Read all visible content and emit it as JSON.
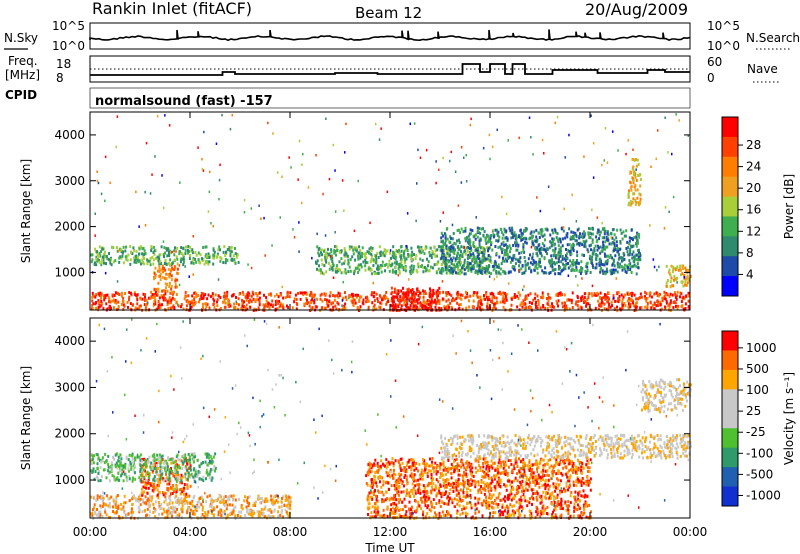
{
  "header": {
    "station": "Rankin Inlet (fitACF)",
    "beam": "Beam 12",
    "date": "20/Aug/2009"
  },
  "noise_panel": {
    "left_label": "N.Sky",
    "right_label": "N.Search",
    "left_ticks": [
      "10^5",
      "10^0"
    ],
    "right_ticks": [
      "10^5",
      "10^0"
    ]
  },
  "freq_panel": {
    "left_label_1": "Freq.",
    "left_label_2": "[MHz]",
    "right_label": "Nave",
    "left_ticks": [
      "18",
      "8"
    ],
    "right_ticks": [
      "60",
      "0"
    ]
  },
  "cpid": {
    "label": "CPID",
    "value": "normalsound (fast) -157"
  },
  "colors": {
    "power": [
      "#0000ff",
      "#1f4ba8",
      "#2f8a6e",
      "#3fae4f",
      "#a8cf3a",
      "#f0a020",
      "#ff7e00",
      "#ff4000",
      "#ff0000"
    ],
    "velocity": [
      "#ff0000",
      "#ff6a00",
      "#ffa500",
      "#c8c8c8",
      "#c8c8c8",
      "#4fc030",
      "#2f9a6a",
      "#2060b0",
      "#1030d0"
    ]
  },
  "chart_data": [
    {
      "type": "heatmap",
      "title": "Power",
      "ylabel": "Slant Range [km]",
      "ylim": [
        180,
        4500
      ],
      "yticks": [
        "1000",
        "2000",
        "3000",
        "4000"
      ],
      "xlim_hours": [
        0,
        24
      ],
      "colorbar_label": "Power [dB]",
      "colorbar_ticks": [
        "4",
        "8",
        "12",
        "16",
        "20",
        "24",
        "28"
      ],
      "bands": [
        {
          "x": [
            0.0,
            24.0
          ],
          "y": [
            200,
            600
          ],
          "level": 7
        },
        {
          "x": [
            2.5,
            3.5
          ],
          "y": [
            600,
            1200
          ],
          "level": 6
        },
        {
          "x": [
            0.0,
            6.0
          ],
          "y": [
            1200,
            1600
          ],
          "level": 3
        },
        {
          "x": [
            9.0,
            16.0
          ],
          "y": [
            1000,
            1600
          ],
          "level": 3
        },
        {
          "x": [
            12.0,
            14.0
          ],
          "y": [
            200,
            700
          ],
          "level": 8
        },
        {
          "x": [
            14.0,
            22.0
          ],
          "y": [
            1000,
            2000
          ],
          "level": 2
        },
        {
          "x": [
            21.5,
            22.0
          ],
          "y": [
            2500,
            3500
          ],
          "level": 5
        },
        {
          "x": [
            23.0,
            24.0
          ],
          "y": [
            700,
            1200
          ],
          "level": 5
        }
      ]
    },
    {
      "type": "heatmap",
      "title": "Velocity",
      "ylabel": "Slant Range [km]",
      "ylim": [
        180,
        4500
      ],
      "yticks": [
        "1000",
        "2000",
        "3000",
        "4000"
      ],
      "xlim_hours": [
        0,
        24
      ],
      "xticks": [
        "00:00",
        "04:00",
        "08:00",
        "12:00",
        "16:00",
        "20:00",
        "00:00"
      ],
      "xlabel": "Time UT",
      "colorbar_label": "Velocity [m s⁻¹]",
      "colorbar_ticks": [
        "1000",
        "500",
        "100",
        "25",
        "-25",
        "-100",
        "-500",
        "-1000"
      ],
      "bands": [
        {
          "x": [
            0.0,
            8.0
          ],
          "y": [
            200,
            700
          ],
          "level": 2
        },
        {
          "x": [
            2.0,
            4.0
          ],
          "y": [
            700,
            1500
          ],
          "level": 1
        },
        {
          "x": [
            11.0,
            20.0
          ],
          "y": [
            200,
            1500
          ],
          "level": 1
        },
        {
          "x": [
            14.0,
            24.0
          ],
          "y": [
            1500,
            2000
          ],
          "level": 3
        },
        {
          "x": [
            22.0,
            24.0
          ],
          "y": [
            2500,
            3200
          ],
          "level": 3
        },
        {
          "x": [
            0.0,
            5.0
          ],
          "y": [
            1000,
            1600
          ],
          "level": 5
        }
      ]
    }
  ]
}
